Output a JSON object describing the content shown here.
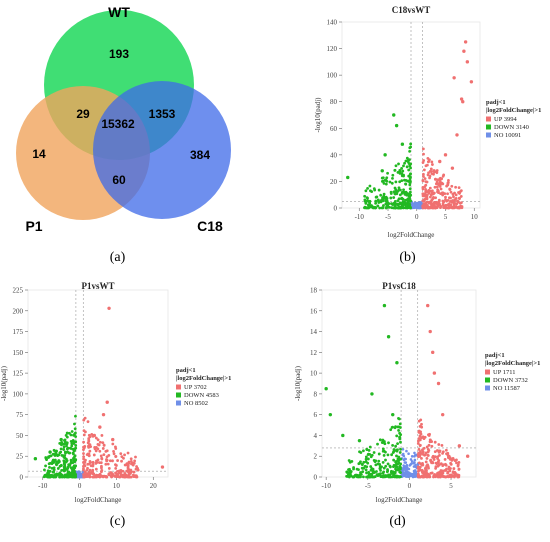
{
  "captions": {
    "a": "(a)",
    "b": "(b)",
    "c": "(c)",
    "d": "(d)"
  },
  "venn": {
    "sets": [
      {
        "name": "WT",
        "color": "#1fd85c"
      },
      {
        "name": "P1",
        "color": "#f0a45c"
      },
      {
        "name": "C18",
        "color": "#3e6ae8"
      }
    ],
    "regions": {
      "wt_only": "193",
      "p1_only": "14",
      "c18_only": "384",
      "wt_p1": "29",
      "wt_c18": "1353",
      "p1_c18": "60",
      "all": "15362"
    }
  },
  "chart_data": [
    {
      "type": "scatter",
      "title": "C18vsWT",
      "xlabel": "log2FoldChange",
      "ylabel": "-log10(padj)",
      "xlim": [
        -13,
        11
      ],
      "ylim": [
        0,
        140
      ],
      "xticks": [
        "-10",
        "-5",
        "0",
        "5",
        "10"
      ],
      "xtick_values": [
        -10,
        -5,
        0,
        5,
        10
      ],
      "yticks": [
        "0",
        "20",
        "40",
        "60",
        "80",
        "100",
        "120",
        "140"
      ],
      "ytick_values": [
        0,
        20,
        40,
        60,
        80,
        100,
        120,
        140
      ],
      "threshold_y": 5,
      "legend": {
        "title": "padj<1",
        "subtitle": "|log2FoldChange|>1",
        "placement": "right",
        "entries": [
          {
            "label": "UP 3994",
            "color": "#f07070"
          },
          {
            "label": "DOWN 3140",
            "color": "#22b822"
          },
          {
            "label": "NO 10091",
            "color": "#6f8fe8"
          }
        ]
      },
      "series": [
        {
          "name": "UP",
          "color": "#f07070",
          "points": [
            [
              8.5,
              125
            ],
            [
              8.2,
              118
            ],
            [
              8.8,
              110
            ],
            [
              6.5,
              98
            ],
            [
              9.5,
              95
            ],
            [
              7.8,
              82
            ],
            [
              8.0,
              80
            ],
            [
              7.0,
              55
            ],
            [
              5.0,
              40
            ],
            [
              4.0,
              35
            ],
            [
              3.0,
              28
            ],
            [
              6.2,
              30
            ]
          ]
        },
        {
          "name": "DOWN",
          "color": "#22b822",
          "points": [
            [
              -4.0,
              70
            ],
            [
              -3.5,
              62
            ],
            [
              -5.5,
              40
            ],
            [
              -6.0,
              28
            ],
            [
              -12.0,
              23
            ],
            [
              -2.5,
              48
            ]
          ]
        }
      ]
    },
    {
      "type": "scatter",
      "title": "P1vsWT",
      "xlabel": "log2FoldChange",
      "ylabel": "-log10(padj)",
      "xlim": [
        -14,
        24
      ],
      "ylim": [
        0,
        225
      ],
      "xticks": [
        "-10",
        "0",
        "10",
        "20"
      ],
      "xtick_values": [
        -10,
        0,
        10,
        20
      ],
      "yticks": [
        "0",
        "25",
        "50",
        "75",
        "100",
        "125",
        "150",
        "175",
        "200",
        "225"
      ],
      "ytick_values": [
        0,
        25,
        50,
        75,
        100,
        125,
        150,
        175,
        200,
        225
      ],
      "threshold_y": 7,
      "legend": {
        "title": "padj<1",
        "subtitle": "|log2FoldChange|>1",
        "placement": "right",
        "entries": [
          {
            "label": "UP 3702",
            "color": "#f07070"
          },
          {
            "label": "DOWN 4583",
            "color": "#22b822"
          },
          {
            "label": "NO 8502",
            "color": "#6f8fe8"
          }
        ]
      },
      "series": [
        {
          "name": "UP",
          "color": "#f07070",
          "points": [
            [
              8.0,
              203
            ],
            [
              7.5,
              90
            ],
            [
              6.5,
              75
            ],
            [
              5.5,
              60
            ],
            [
              22.5,
              12
            ],
            [
              9.0,
              45
            ],
            [
              4.0,
              50
            ]
          ]
        },
        {
          "name": "DOWN",
          "color": "#22b822",
          "points": [
            [
              -5.0,
              45
            ],
            [
              -12.0,
              22
            ],
            [
              -3.5,
              40
            ],
            [
              -8.0,
              30
            ]
          ]
        }
      ]
    },
    {
      "type": "scatter",
      "title": "P1vsC18",
      "xlabel": "log2FoldChange",
      "ylabel": "-log10(padj)",
      "xlim": [
        -10.5,
        8
      ],
      "ylim": [
        0,
        18
      ],
      "xticks": [
        "-10",
        "-5",
        "0",
        "5"
      ],
      "xtick_values": [
        -10,
        -5,
        0,
        5
      ],
      "yticks": [
        "0",
        "2",
        "4",
        "6",
        "8",
        "10",
        "12",
        "14",
        "16",
        "18"
      ],
      "ytick_values": [
        0,
        2,
        4,
        6,
        8,
        10,
        12,
        14,
        16,
        18
      ],
      "threshold_y": 2.8,
      "legend": {
        "title": "padj<1",
        "subtitle": "|log2FoldChange|>1",
        "placement": "right",
        "entries": [
          {
            "label": "UP 1711",
            "color": "#f07070"
          },
          {
            "label": "DOWN 3732",
            "color": "#22b822"
          },
          {
            "label": "NO 11587",
            "color": "#6f8fe8"
          }
        ]
      },
      "series": [
        {
          "name": "UP",
          "color": "#f07070",
          "points": [
            [
              2.2,
              16.5
            ],
            [
              2.5,
              14
            ],
            [
              2.8,
              12
            ],
            [
              3.5,
              9
            ],
            [
              3.0,
              10
            ],
            [
              4.0,
              6
            ],
            [
              6.0,
              3
            ],
            [
              7.0,
              2
            ]
          ]
        },
        {
          "name": "DOWN",
          "color": "#22b822",
          "points": [
            [
              -3.0,
              16.5
            ],
            [
              -2.5,
              13.5
            ],
            [
              -1.5,
              11
            ],
            [
              -4.5,
              8
            ],
            [
              -10.0,
              8.5
            ],
            [
              -9.5,
              6
            ],
            [
              -8.0,
              4
            ],
            [
              -6.0,
              3.5
            ],
            [
              -2.0,
              6
            ]
          ]
        }
      ]
    }
  ]
}
